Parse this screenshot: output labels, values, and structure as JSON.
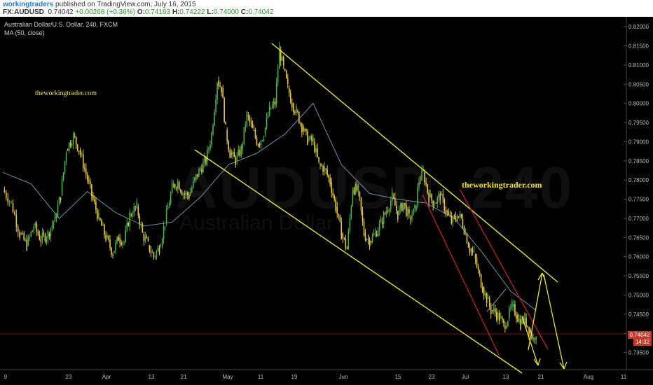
{
  "header": {
    "author": "workingtraders",
    "published": "published on TradingView.com, July 16, 2015",
    "symbol": "FX:AUDUSD",
    "last": "0.74042",
    "change": "+0.00268 (+0.36%)",
    "o_label": "O:",
    "o_value": "0.74163",
    "h_label": "H:",
    "h_value": "0.74222",
    "l_label": "L:",
    "l_value": "0.74000",
    "c_label": "C:",
    "c_value": "0.74042"
  },
  "chart": {
    "symbol_title": "Australian Dollar/U.S. Dollar, 240, FXCM",
    "ma_title": "MA (50, close)",
    "brand_small": "theworkingtrader.com",
    "brand_large": "theworkingtrader.com",
    "watermark": "AUDUSD, 240",
    "watermark_sub": "Australian Dollar",
    "current_price_tag": "0.74042",
    "countdown_tag": "14:32"
  },
  "colors": {
    "background": "#000000",
    "candle_up": "#4caf50",
    "candle_down": "#e8c840",
    "ma_line": "#6e8fa6",
    "channel": "#e8e820",
    "red_channel": "#d42020",
    "arrow": "#e8e820",
    "price_line": "#c0392b"
  },
  "chart_data": {
    "type": "line",
    "title": "Australian Dollar/U.S. Dollar, 240, FXCM",
    "x_ticks": [
      "9",
      "23",
      "Apr",
      "13",
      "21",
      "May",
      "11",
      "19",
      "Jun",
      "15",
      "23",
      "Jul",
      "13",
      "21",
      "Aug",
      "11"
    ],
    "y_ticks": [
      "0.82000",
      "0.81500",
      "0.81000",
      "0.80500",
      "0.80000",
      "0.79500",
      "0.79000",
      "0.78500",
      "0.78000",
      "0.77500",
      "0.77000",
      "0.76500",
      "0.76000",
      "0.75500",
      "0.75000",
      "0.74500",
      "0.74000",
      "0.73500"
    ],
    "ylim": [
      0.732,
      0.8215
    ],
    "grid": false,
    "series": [
      {
        "name": "AUDUSD",
        "x": [
          0,
          12,
          24,
          34,
          44,
          54,
          64,
          74,
          82,
          90,
          100,
          108,
          116,
          126,
          136,
          146,
          156,
          164,
          172,
          180,
          190,
          198,
          206,
          214,
          222,
          230,
          240,
          248,
          256,
          264,
          272,
          280,
          288,
          296,
          304,
          310,
          316,
          322,
          330,
          338,
          346,
          354,
          362,
          370,
          378,
          386,
          392,
          398,
          404,
          410,
          416,
          424,
          432,
          440,
          448,
          456,
          464,
          472,
          480,
          488,
          496,
          504,
          512,
          520,
          528,
          536,
          544,
          552,
          560,
          568,
          576,
          584,
          590,
          596,
          604,
          612,
          620,
          628,
          636,
          644,
          650,
          656,
          662,
          668,
          674,
          680,
          686,
          692,
          698,
          704,
          710,
          716,
          722,
          728,
          734,
          740,
          746,
          752,
          756
        ],
        "values": [
          0.7775,
          0.774,
          0.766,
          0.763,
          0.768,
          0.7645,
          0.766,
          0.77,
          0.776,
          0.788,
          0.7915,
          0.788,
          0.783,
          0.776,
          0.77,
          0.765,
          0.761,
          0.765,
          0.764,
          0.771,
          0.773,
          0.766,
          0.763,
          0.76,
          0.7625,
          0.769,
          0.778,
          0.7795,
          0.7765,
          0.776,
          0.78,
          0.783,
          0.785,
          0.792,
          0.806,
          0.804,
          0.793,
          0.787,
          0.785,
          0.788,
          0.797,
          0.793,
          0.7895,
          0.792,
          0.7985,
          0.8,
          0.814,
          0.809,
          0.804,
          0.8,
          0.798,
          0.794,
          0.7905,
          0.79,
          0.784,
          0.783,
          0.7795,
          0.773,
          0.766,
          0.762,
          0.778,
          0.777,
          0.766,
          0.764,
          0.766,
          0.769,
          0.772,
          0.7755,
          0.771,
          0.774,
          0.77,
          0.772,
          0.78,
          0.782,
          0.7755,
          0.774,
          0.776,
          0.772,
          0.769,
          0.7705,
          0.77,
          0.766,
          0.762,
          0.7605,
          0.756,
          0.752,
          0.749,
          0.746,
          0.7455,
          0.744,
          0.742,
          0.744,
          0.747,
          0.745,
          0.7425,
          0.744,
          0.741,
          0.7385,
          0.7404
        ]
      },
      {
        "name": "MA (50, close)",
        "x": [
          0,
          40,
          80,
          120,
          160,
          200,
          240,
          280,
          320,
          360,
          400,
          440,
          480,
          520,
          560,
          600,
          640,
          680,
          720,
          756
        ],
        "values": [
          0.782,
          0.779,
          0.77,
          0.777,
          0.7715,
          0.768,
          0.769,
          0.7755,
          0.784,
          0.787,
          0.792,
          0.8,
          0.784,
          0.7765,
          0.775,
          0.774,
          0.77,
          0.761,
          0.751,
          0.746
        ]
      }
    ]
  }
}
